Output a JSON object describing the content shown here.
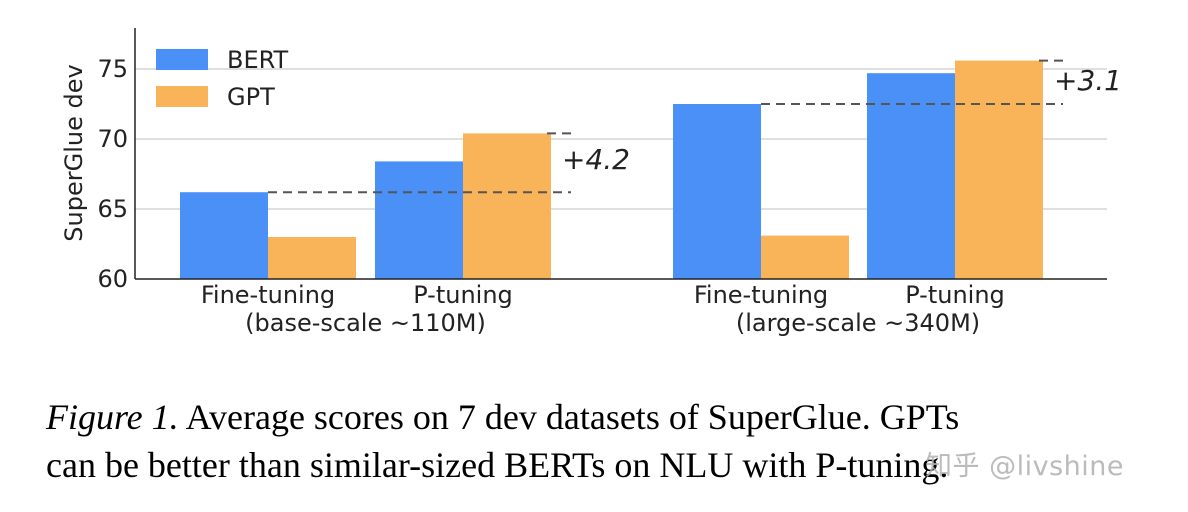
{
  "chart_data": {
    "type": "bar",
    "ylabel": "SuperGlue dev",
    "ylim": [
      60,
      78
    ],
    "yticks": [
      "60",
      "65",
      "70",
      "75"
    ],
    "grid": true,
    "legend_position": "top-left",
    "series": [
      {
        "name": "BERT",
        "color": "#4a90f7",
        "values": [
          66.2,
          68.4,
          72.5,
          74.7
        ]
      },
      {
        "name": "GPT",
        "color": "#f9b359",
        "values": [
          63.0,
          70.4,
          63.1,
          75.6
        ]
      }
    ],
    "categories": [
      "Fine-tuning",
      "P-tuning",
      "Fine-tuning",
      "P-tuning"
    ],
    "groups": [
      "(base-scale ~110M)",
      "(large-scale ~340M)"
    ],
    "annotations": [
      {
        "text": "+4.2",
        "from_value": 66.2,
        "to_value": 70.4
      },
      {
        "text": "+3.1",
        "from_value": 72.5,
        "to_value": 75.6
      }
    ]
  },
  "caption": {
    "label": "Figure 1.",
    "line1": " Average scores on 7 dev datasets of SuperGlue. GPTs",
    "line2": "can be better than similar-sized BERTs on NLU with P-tuning."
  },
  "watermark": "知乎 @livshine"
}
